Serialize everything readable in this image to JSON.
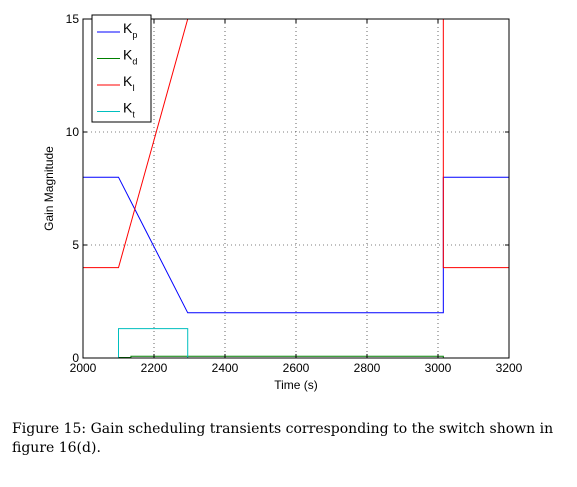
{
  "chart_data": {
    "type": "line",
    "xlabel": "Time (s)",
    "ylabel": "Gain Magnitude",
    "xlim": [
      2000,
      3200
    ],
    "ylim": [
      0,
      15
    ],
    "xticks": [
      2000,
      2200,
      2400,
      2600,
      2800,
      3000,
      3200
    ],
    "yticks": [
      0,
      5,
      10,
      15
    ],
    "grid": true,
    "legend_position": "top-left",
    "series": [
      {
        "name": "K",
        "subscript": "p",
        "color": "#0000ff",
        "x": [
          2000,
          2100,
          2295,
          3015,
          3015,
          3200
        ],
        "y": [
          8,
          8,
          2,
          2,
          8,
          8
        ]
      },
      {
        "name": "K",
        "subscript": "d",
        "color": "#008000",
        "x": [
          2000,
          2100,
          2100,
          2135,
          2135,
          3015,
          3015,
          3200
        ],
        "y": [
          0,
          0,
          0.02,
          0.02,
          0.08,
          0.08,
          0,
          0
        ]
      },
      {
        "name": "K",
        "subscript": "I",
        "color": "#ff0000",
        "x": [
          2000,
          2100,
          2295,
          3015,
          3015,
          3200
        ],
        "y": [
          4,
          4,
          15,
          15,
          4,
          4
        ]
      },
      {
        "name": "K",
        "subscript": "t",
        "color": "#00bfbf",
        "x": [
          2000,
          2100,
          2100,
          2295,
          2295,
          3200
        ],
        "y": [
          0,
          0,
          1.3,
          1.3,
          0,
          0
        ]
      }
    ]
  },
  "caption": {
    "label": "Figure 15:",
    "text": "Gain scheduling transients corresponding to the switch shown in figure 16(d)."
  }
}
